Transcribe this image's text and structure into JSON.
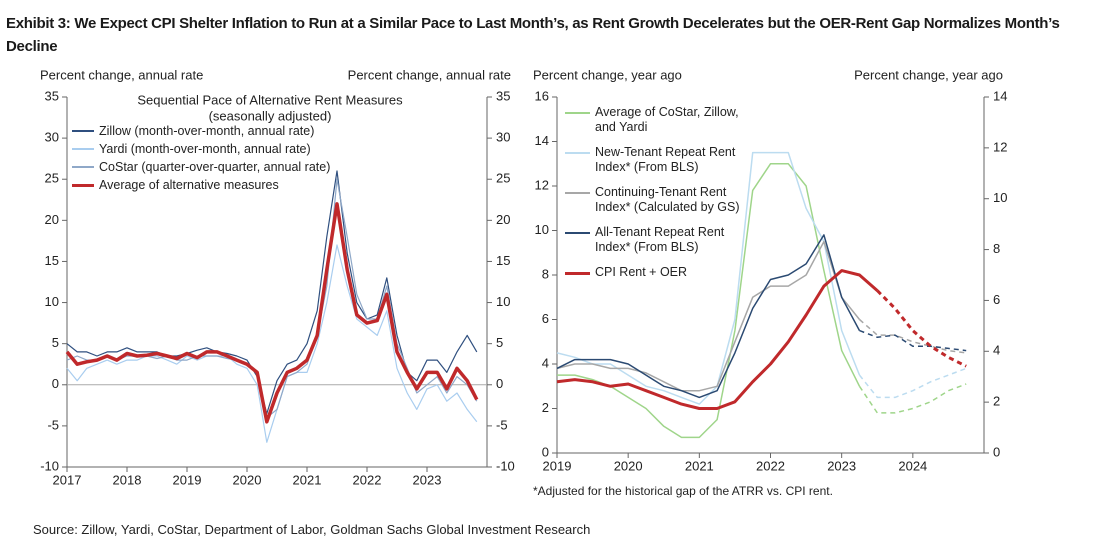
{
  "title": "Exhibit 3: We Expect CPI Shelter Inflation to Run at a Similar Pace to Last Month’s, as Rent Growth Decelerates but the OER-Rent Gap Normalizes Month’s Decline",
  "source": "Source: Zillow, Yardi, CoStar, Department of Labor, Goldman Sachs Global Investment Research",
  "chart_data": [
    {
      "type": "line",
      "annotation": [
        "Sequential Pace of Alternative Rent Measures",
        "(seasonally adjusted)"
      ],
      "y_label": "Percent change, annual rate",
      "y2_label": "Percent change, annual rate",
      "x": [
        2017,
        2017.17,
        2017.33,
        2017.5,
        2017.67,
        2017.83,
        2018,
        2018.17,
        2018.33,
        2018.5,
        2018.67,
        2018.83,
        2019,
        2019.17,
        2019.33,
        2019.5,
        2019.67,
        2019.83,
        2020,
        2020.17,
        2020.33,
        2020.5,
        2020.67,
        2020.83,
        2021,
        2021.17,
        2021.33,
        2021.5,
        2021.67,
        2021.83,
        2022,
        2022.17,
        2022.33,
        2022.5,
        2022.67,
        2022.83,
        2023,
        2023.17,
        2023.33,
        2023.5,
        2023.67,
        2023.83
      ],
      "xlim": [
        2017,
        2024
      ],
      "xticks": [
        2017,
        2018,
        2019,
        2020,
        2021,
        2022,
        2023
      ],
      "ylim": [
        -10,
        35
      ],
      "yticks": [
        -10,
        -5,
        0,
        5,
        10,
        15,
        20,
        25,
        30,
        35
      ],
      "y2lim": [
        -10,
        35
      ],
      "y2ticks": [
        -10,
        -5,
        0,
        5,
        10,
        15,
        20,
        25,
        30,
        35
      ],
      "zero_line": true,
      "series": [
        {
          "name": "Zillow (month-over-month, annual rate)",
          "color": "#2f4f7f",
          "width": 1.2,
          "values": [
            5,
            4,
            4,
            3.5,
            4,
            4,
            4.5,
            4,
            4,
            4,
            3.5,
            3.5,
            3.8,
            4.2,
            4.5,
            4,
            3.8,
            3.5,
            3,
            1,
            -3.5,
            0.5,
            2.5,
            3,
            5,
            9,
            18,
            26,
            16,
            10,
            8,
            8.5,
            13,
            6,
            1.5,
            0.5,
            3,
            3,
            1.5,
            4,
            6,
            4
          ]
        },
        {
          "name": "Yardi (month-over-month, annual rate)",
          "color": "#a9cdef",
          "width": 1.2,
          "values": [
            2,
            0.5,
            2,
            2.5,
            3,
            2.5,
            3,
            3,
            3.5,
            3.5,
            3,
            2.5,
            3.5,
            3,
            3.5,
            3.5,
            3.5,
            2.5,
            2,
            0,
            -7,
            -3,
            1,
            1.5,
            1.5,
            5,
            10,
            17,
            12,
            8,
            7,
            6,
            9,
            2,
            -1,
            -3,
            -0.5,
            0,
            -2,
            -1,
            -3,
            -4.5
          ]
        },
        {
          "name": "CoStar (quarter-over-quarter, annual rate)",
          "color": "#8fa8c8",
          "width": 1.2,
          "values": [
            3,
            3.5,
            3,
            3,
            3.5,
            3,
            3.5,
            3.5,
            3.5,
            3.2,
            3.5,
            3,
            3,
            3.5,
            3.5,
            3.5,
            3.2,
            3,
            2.5,
            1.5,
            -4,
            -3,
            1,
            1.5,
            2.5,
            6,
            12,
            25,
            18,
            11,
            8,
            8,
            12,
            5,
            2,
            -1,
            0,
            1,
            -1,
            1,
            0,
            -2
          ]
        },
        {
          "name": "Average of alternative measures",
          "color": "#c0292b",
          "width": 3.5,
          "values": [
            4,
            2.5,
            2.8,
            3,
            3.5,
            3,
            3.8,
            3.5,
            3.6,
            3.8,
            3.5,
            3.2,
            3.8,
            3.3,
            4,
            4,
            3.5,
            3,
            2.5,
            1.5,
            -4.5,
            -1,
            1.5,
            2,
            3,
            6,
            14,
            22,
            14,
            8.5,
            7.5,
            7.8,
            11,
            4,
            1.5,
            -0.5,
            1.5,
            1.5,
            -0.5,
            2,
            0.5,
            -1.8
          ]
        }
      ]
    },
    {
      "type": "line",
      "y_label": "Percent change, year ago",
      "y2_label": "Percent change, year ago",
      "footnote": "*Adjusted for the historical gap of the ATRR vs. CPI rent.",
      "x": [
        2019,
        2019.25,
        2019.5,
        2019.75,
        2020,
        2020.25,
        2020.5,
        2020.75,
        2021,
        2021.25,
        2021.5,
        2021.75,
        2022,
        2022.25,
        2022.5,
        2022.75,
        2023,
        2023.25,
        2023.5,
        2023.75,
        2024,
        2024.25,
        2024.5,
        2024.75
      ],
      "xlim": [
        2019,
        2025
      ],
      "xticks": [
        2019,
        2020,
        2021,
        2022,
        2023,
        2024
      ],
      "ylim": [
        0,
        16
      ],
      "yticks": [
        0,
        2,
        4,
        6,
        8,
        10,
        12,
        14,
        16
      ],
      "y2lim": [
        0,
        14
      ],
      "y2ticks": [
        0,
        2,
        4,
        6,
        8,
        10,
        12,
        14
      ],
      "series": [
        {
          "name": "Average of CoStar, Zillow, and Yardi",
          "color": "#9fd58a",
          "width": 1.5,
          "dash_from": 2023.5,
          "values": [
            3.5,
            3.5,
            3.3,
            3,
            2.5,
            2,
            1.2,
            0.7,
            0.7,
            1.5,
            5.5,
            11.8,
            13,
            13,
            12,
            8.2,
            4.6,
            3,
            1.8,
            1.8,
            2,
            2.3,
            2.8,
            3.1
          ]
        },
        {
          "name": "New-Tenant Repeat Rent Index* (From BLS)",
          "color": "#bcdcf0",
          "width": 1.5,
          "dash_from": 2023.5,
          "values": [
            4.5,
            4.3,
            4,
            4,
            3.5,
            3,
            2.8,
            2.5,
            2.2,
            3,
            6,
            13.5,
            13.5,
            13.5,
            11,
            9.5,
            5.5,
            3.5,
            2.5,
            2.5,
            2.8,
            3.2,
            3.5,
            3.8
          ]
        },
        {
          "name": "Continuing-Tenant Rent Index* (Calculated by GS)",
          "color": "#a7a7a7",
          "width": 1.5,
          "dash_from": 2023.5,
          "values": [
            3.8,
            4,
            4,
            3.8,
            3.8,
            3.6,
            3.2,
            2.8,
            2.8,
            3,
            5,
            7,
            7.5,
            7.5,
            8,
            9.5,
            7,
            6,
            5.3,
            5.3,
            5,
            4.8,
            4.6,
            4.5
          ]
        },
        {
          "name": "All-Tenant Repeat Rent Index* (From BLS)",
          "color": "#2b4a72",
          "width": 1.5,
          "dash_from": 2023.5,
          "values": [
            3.8,
            4.2,
            4.2,
            4.2,
            4,
            3.5,
            3,
            2.8,
            2.5,
            2.8,
            4.5,
            6.5,
            7.8,
            8,
            8.5,
            9.8,
            7,
            5.5,
            5.2,
            5.3,
            4.8,
            4.8,
            4.7,
            4.6
          ]
        },
        {
          "name": "CPI Rent + OER",
          "color": "#c0292b",
          "width": 3,
          "dash_from": 2023.75,
          "values": [
            3.2,
            3.3,
            3.2,
            3,
            3.1,
            2.8,
            2.5,
            2.2,
            2,
            2,
            2.3,
            3.2,
            4,
            5,
            6.2,
            7.5,
            8.2,
            8,
            7.3,
            6.5,
            5.5,
            4.8,
            4.3,
            3.9
          ]
        }
      ]
    }
  ]
}
